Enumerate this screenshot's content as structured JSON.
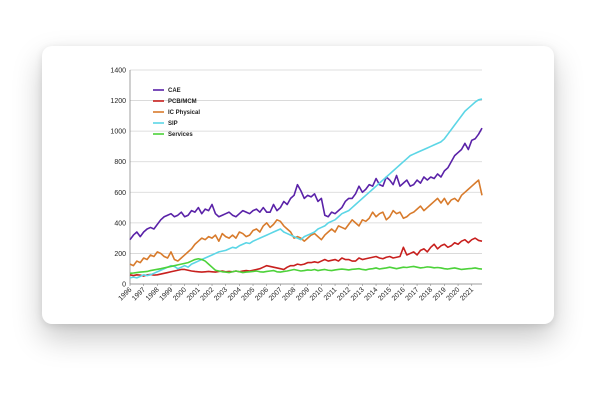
{
  "chart_data": {
    "type": "line",
    "title": "",
    "xlabel": "",
    "ylabel": "",
    "ylim": [
      0,
      1400
    ],
    "yticks": [
      0,
      200,
      400,
      600,
      800,
      1000,
      1200,
      1400
    ],
    "x_tick_labels": [
      "1996",
      "1997",
      "1998",
      "1999",
      "2000",
      "2001",
      "2002",
      "2003",
      "2004",
      "2005",
      "2006",
      "2007",
      "2008",
      "2009",
      "2010",
      "2011",
      "2012",
      "2013",
      "2014",
      "2015",
      "2016",
      "2017",
      "2018",
      "2019",
      "2020",
      "2021"
    ],
    "grid": "horizontal",
    "legend_position": "top-left",
    "x_start_year": 1996,
    "samples_per_year": 4,
    "series": [
      {
        "name": "CAE",
        "color": "#5a22a8",
        "values": [
          290,
          320,
          340,
          310,
          340,
          360,
          370,
          360,
          390,
          420,
          440,
          450,
          460,
          440,
          450,
          470,
          440,
          450,
          480,
          470,
          500,
          460,
          490,
          480,
          520,
          460,
          440,
          450,
          460,
          470,
          450,
          440,
          460,
          480,
          470,
          460,
          480,
          490,
          470,
          500,
          470,
          470,
          520,
          480,
          500,
          540,
          520,
          560,
          580,
          650,
          610,
          560,
          580,
          570,
          590,
          540,
          560,
          450,
          440,
          470,
          460,
          480,
          500,
          540,
          560,
          560,
          590,
          640,
          600,
          620,
          650,
          640,
          690,
          650,
          640,
          700,
          680,
          650,
          710,
          640,
          660,
          680,
          640,
          650,
          680,
          660,
          700,
          680,
          700,
          690,
          720,
          700,
          740,
          760,
          800,
          840,
          860,
          880,
          920,
          880,
          940,
          950,
          980,
          1020
        ]
      },
      {
        "name": "PCB/MCM",
        "color": "#c8201e",
        "values": [
          60,
          55,
          60,
          58,
          52,
          60,
          62,
          58,
          60,
          65,
          70,
          75,
          80,
          85,
          90,
          95,
          95,
          90,
          85,
          82,
          80,
          78,
          80,
          82,
          80,
          78,
          82,
          85,
          80,
          82,
          80,
          85,
          80,
          85,
          88,
          85,
          90,
          95,
          100,
          110,
          120,
          115,
          110,
          105,
          100,
          95,
          110,
          120,
          120,
          130,
          125,
          130,
          140,
          140,
          145,
          140,
          150,
          160,
          150,
          155,
          160,
          150,
          170,
          160,
          160,
          150,
          150,
          170,
          160,
          165,
          170,
          175,
          180,
          170,
          165,
          175,
          180,
          170,
          175,
          180,
          240,
          190,
          200,
          210,
          190,
          220,
          230,
          210,
          240,
          260,
          230,
          250,
          260,
          240,
          250,
          270,
          260,
          280,
          290,
          270,
          290,
          300,
          285,
          280
        ]
      },
      {
        "name": "IC Physical",
        "color": "#d87b2c",
        "values": [
          130,
          120,
          150,
          140,
          170,
          160,
          190,
          180,
          210,
          200,
          180,
          170,
          210,
          160,
          150,
          170,
          190,
          210,
          230,
          260,
          280,
          300,
          290,
          310,
          300,
          320,
          280,
          330,
          310,
          300,
          320,
          300,
          340,
          330,
          310,
          320,
          350,
          360,
          340,
          380,
          400,
          370,
          390,
          420,
          410,
          380,
          360,
          340,
          300,
          310,
          300,
          280,
          300,
          320,
          330,
          310,
          290,
          320,
          340,
          360,
          340,
          380,
          370,
          360,
          390,
          420,
          400,
          380,
          420,
          410,
          430,
          470,
          440,
          460,
          470,
          420,
          440,
          480,
          460,
          470,
          430,
          440,
          460,
          470,
          490,
          510,
          480,
          500,
          520,
          540,
          560,
          530,
          560,
          520,
          550,
          560,
          540,
          580,
          600,
          620,
          640,
          660,
          680,
          580
        ]
      },
      {
        "name": "SIP",
        "color": "#5cd6e6",
        "values": [
          40,
          45,
          40,
          50,
          60,
          55,
          60,
          70,
          80,
          90,
          100,
          110,
          120,
          115,
          100,
          110,
          120,
          110,
          130,
          140,
          150,
          160,
          170,
          180,
          190,
          200,
          210,
          215,
          220,
          230,
          240,
          235,
          250,
          260,
          270,
          265,
          280,
          290,
          300,
          310,
          320,
          330,
          340,
          350,
          360,
          340,
          330,
          320,
          310,
          300,
          290,
          310,
          320,
          330,
          340,
          360,
          370,
          380,
          400,
          410,
          420,
          440,
          460,
          470,
          480,
          500,
          520,
          540,
          560,
          580,
          600,
          620,
          640,
          660,
          680,
          700,
          720,
          740,
          760,
          780,
          800,
          820,
          840,
          850,
          860,
          870,
          880,
          890,
          900,
          910,
          920,
          930,
          950,
          980,
          1010,
          1040,
          1070,
          1100,
          1130,
          1150,
          1170,
          1190,
          1205,
          1210
        ]
      },
      {
        "name": "Services",
        "color": "#4dd23a",
        "values": [
          70,
          72,
          75,
          78,
          80,
          82,
          88,
          92,
          96,
          100,
          105,
          110,
          115,
          120,
          125,
          130,
          135,
          140,
          150,
          160,
          165,
          160,
          150,
          130,
          110,
          90,
          85,
          80,
          78,
          75,
          80,
          85,
          80,
          75,
          78,
          80,
          82,
          85,
          80,
          78,
          82,
          85,
          88,
          80,
          78,
          82,
          85,
          90,
          95,
          90,
          85,
          88,
          92,
          90,
          95,
          88,
          92,
          95,
          90,
          88,
          92,
          95,
          98,
          95,
          92,
          96,
          98,
          100,
          95,
          92,
          98,
          100,
          105,
          98,
          102,
          105,
          110,
          105,
          100,
          105,
          110,
          108,
          112,
          115,
          110,
          105,
          108,
          112,
          110,
          106,
          108,
          105,
          100,
          98,
          102,
          105,
          100,
          95,
          98,
          100,
          102,
          105,
          100,
          98
        ]
      }
    ]
  }
}
